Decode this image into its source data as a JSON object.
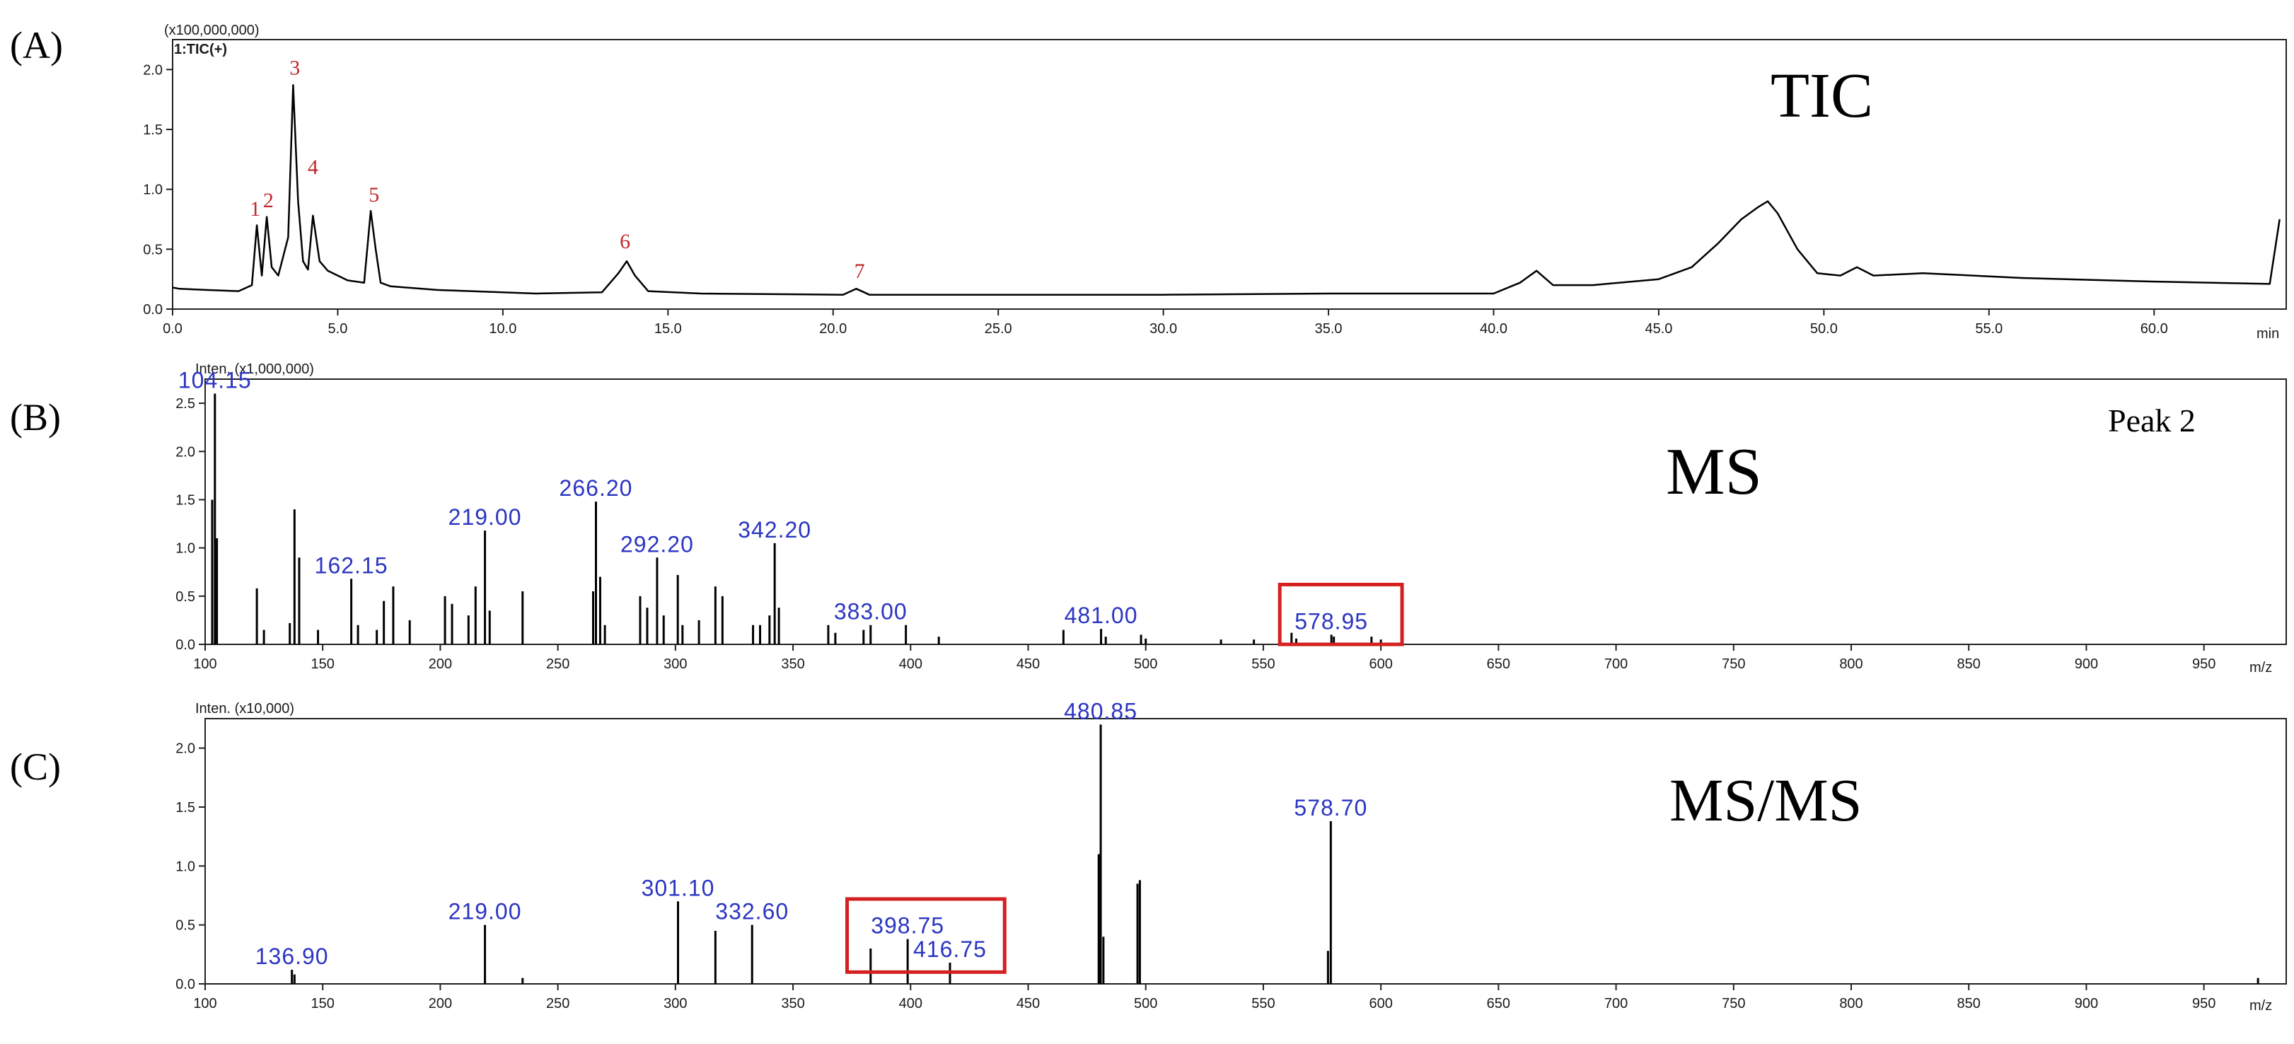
{
  "colors": {
    "trace": "#000000",
    "peak_label": "#c0282a",
    "mz_label": "#2b35c2",
    "highlight_box": "#d42020"
  },
  "chart_data": [
    {
      "id": "A",
      "panel_label": "(A)",
      "type": "line",
      "title": "TIC",
      "scale_note": "(x100,000,000)",
      "trace_label": "1:TIC(+)",
      "xlabel": "min",
      "xlim": [
        0,
        64
      ],
      "ylim": [
        0,
        2.25
      ],
      "x_ticks": [
        "0.0",
        "5.0",
        "10.0",
        "15.0",
        "20.0",
        "25.0",
        "30.0",
        "35.0",
        "40.0",
        "45.0",
        "50.0",
        "55.0",
        "60.0"
      ],
      "y_ticks": [
        "0.0",
        "0.5",
        "1.0",
        "1.5",
        "2.0"
      ],
      "x": [
        0,
        0.2,
        1.0,
        2.0,
        2.4,
        2.55,
        2.7,
        2.85,
        3.0,
        3.2,
        3.5,
        3.65,
        3.8,
        3.95,
        4.1,
        4.25,
        4.45,
        4.7,
        5.3,
        5.8,
        6.0,
        6.15,
        6.3,
        6.6,
        8.0,
        11.0,
        13.0,
        13.5,
        13.75,
        14.0,
        14.4,
        16.0,
        20.3,
        20.7,
        21.1,
        25.0,
        30.0,
        35.0,
        40.0,
        40.8,
        41.3,
        41.8,
        43.0,
        45.0,
        46.0,
        46.8,
        47.5,
        48.0,
        48.3,
        48.6,
        49.2,
        49.8,
        50.5,
        51.0,
        51.5,
        53.0,
        56.0,
        60.0,
        63.5,
        63.8
      ],
      "y": [
        0.18,
        0.17,
        0.16,
        0.15,
        0.2,
        0.7,
        0.28,
        0.77,
        0.35,
        0.28,
        0.6,
        1.87,
        0.9,
        0.4,
        0.33,
        0.78,
        0.4,
        0.32,
        0.24,
        0.22,
        0.82,
        0.5,
        0.22,
        0.19,
        0.16,
        0.13,
        0.14,
        0.3,
        0.4,
        0.28,
        0.15,
        0.13,
        0.12,
        0.17,
        0.12,
        0.12,
        0.12,
        0.13,
        0.13,
        0.22,
        0.32,
        0.2,
        0.2,
        0.25,
        0.35,
        0.55,
        0.75,
        0.85,
        0.9,
        0.8,
        0.5,
        0.3,
        0.28,
        0.35,
        0.28,
        0.3,
        0.26,
        0.23,
        0.21,
        0.75
      ],
      "peak_labels": [
        {
          "label": "1",
          "x": 2.5,
          "y": 0.72
        },
        {
          "label": "2",
          "x": 2.9,
          "y": 0.79
        },
        {
          "label": "3",
          "x": 3.7,
          "y": 1.9
        },
        {
          "label": "4",
          "x": 4.25,
          "y": 1.07
        },
        {
          "label": "5",
          "x": 6.1,
          "y": 0.84
        },
        {
          "label": "6",
          "x": 13.7,
          "y": 0.45
        },
        {
          "label": "7",
          "x": 20.8,
          "y": 0.2
        }
      ]
    },
    {
      "id": "B",
      "panel_label": "(B)",
      "type": "bar",
      "title": "MS",
      "subtitle": "Peak 2",
      "scale_note": "Inten. (x1,000,000)",
      "xlabel": "m/z",
      "xlim": [
        100,
        985
      ],
      "ylim": [
        0,
        2.75
      ],
      "x_ticks": [
        "100",
        "150",
        "200",
        "250",
        "300",
        "350",
        "400",
        "450",
        "500",
        "550",
        "600",
        "650",
        "700",
        "750",
        "800",
        "850",
        "900",
        "950"
      ],
      "y_ticks": [
        "0.0",
        "0.5",
        "1.0",
        "1.5",
        "2.0",
        "2.5"
      ],
      "peaks_mz": [
        103,
        104.15,
        105,
        122,
        125,
        136,
        138,
        140,
        148,
        162.15,
        165,
        173,
        176,
        180,
        187,
        202,
        205,
        212,
        215,
        219.0,
        221,
        235,
        265,
        266.2,
        268,
        270,
        285,
        288,
        292.2,
        295,
        301,
        303,
        310,
        317,
        320,
        333,
        336,
        340,
        342.2,
        344,
        365,
        368,
        380,
        383.0,
        398,
        412,
        465,
        481.0,
        483,
        498,
        500,
        532,
        546,
        562,
        564,
        578.95,
        580,
        596,
        600
      ],
      "peaks_intensity": [
        1.5,
        2.6,
        1.1,
        0.58,
        0.15,
        0.22,
        1.4,
        0.9,
        0.15,
        0.68,
        0.2,
        0.15,
        0.45,
        0.6,
        0.25,
        0.5,
        0.42,
        0.3,
        0.6,
        1.18,
        0.35,
        0.55,
        0.55,
        1.48,
        0.7,
        0.2,
        0.5,
        0.38,
        0.9,
        0.3,
        0.72,
        0.2,
        0.25,
        0.6,
        0.5,
        0.2,
        0.2,
        0.3,
        1.05,
        0.38,
        0.2,
        0.12,
        0.15,
        0.2,
        0.2,
        0.08,
        0.15,
        0.16,
        0.08,
        0.1,
        0.06,
        0.05,
        0.05,
        0.12,
        0.06,
        0.1,
        0.08,
        0.08,
        0.05
      ],
      "labels": [
        {
          "text": "104.15",
          "mz": 104.15,
          "y": 2.6
        },
        {
          "text": "162.15",
          "mz": 162.15,
          "y": 0.68
        },
        {
          "text": "219.00",
          "mz": 219.0,
          "y": 1.18
        },
        {
          "text": "266.20",
          "mz": 266.2,
          "y": 1.48
        },
        {
          "text": "292.20",
          "mz": 292.2,
          "y": 0.9
        },
        {
          "text": "342.20",
          "mz": 342.2,
          "y": 1.05
        },
        {
          "text": "383.00",
          "mz": 383.0,
          "y": 0.2
        },
        {
          "text": "481.00",
          "mz": 481.0,
          "y": 0.16
        },
        {
          "text": "578.95",
          "mz": 578.95,
          "y": 0.1
        }
      ],
      "highlight": {
        "mz_from": 557,
        "mz_to": 609,
        "y_from": 0.0,
        "y_to": 0.62
      }
    },
    {
      "id": "C",
      "panel_label": "(C)",
      "type": "bar",
      "title": "MS/MS",
      "scale_note": "Inten. (x10,000)",
      "xlabel": "m/z",
      "xlim": [
        100,
        985
      ],
      "ylim": [
        0,
        2.25
      ],
      "x_ticks": [
        "100",
        "150",
        "200",
        "250",
        "300",
        "350",
        "400",
        "450",
        "500",
        "550",
        "600",
        "650",
        "700",
        "750",
        "800",
        "850",
        "900",
        "950"
      ],
      "y_ticks": [
        "0.0",
        "0.5",
        "1.0",
        "1.5",
        "2.0"
      ],
      "peaks_mz": [
        136.9,
        138,
        219.0,
        235,
        301.1,
        317,
        332.6,
        383,
        398.75,
        416.75,
        480.0,
        480.85,
        482,
        496.5,
        497.5,
        577.5,
        578.7,
        973
      ],
      "peaks_intensity": [
        0.12,
        0.08,
        0.5,
        0.05,
        0.7,
        0.45,
        0.5,
        0.3,
        0.38,
        0.18,
        1.1,
        2.2,
        0.4,
        0.85,
        0.88,
        0.28,
        1.38,
        0.05
      ],
      "labels": [
        {
          "text": "136.90",
          "mz": 136.9,
          "y": 0.12
        },
        {
          "text": "219.00",
          "mz": 219.0,
          "y": 0.5
        },
        {
          "text": "301.10",
          "mz": 301.1,
          "y": 0.7
        },
        {
          "text": "332.60",
          "mz": 332.6,
          "y": 0.5
        },
        {
          "text": "398.75",
          "mz": 398.75,
          "y": 0.38
        },
        {
          "text": "416.75",
          "mz": 416.75,
          "y": 0.18
        },
        {
          "text": "480.85",
          "mz": 480.85,
          "y": 2.2
        },
        {
          "text": "578.70",
          "mz": 578.7,
          "y": 1.38
        }
      ],
      "highlight": {
        "mz_from": 373,
        "mz_to": 440,
        "y_from": 0.1,
        "y_to": 0.72
      }
    }
  ]
}
